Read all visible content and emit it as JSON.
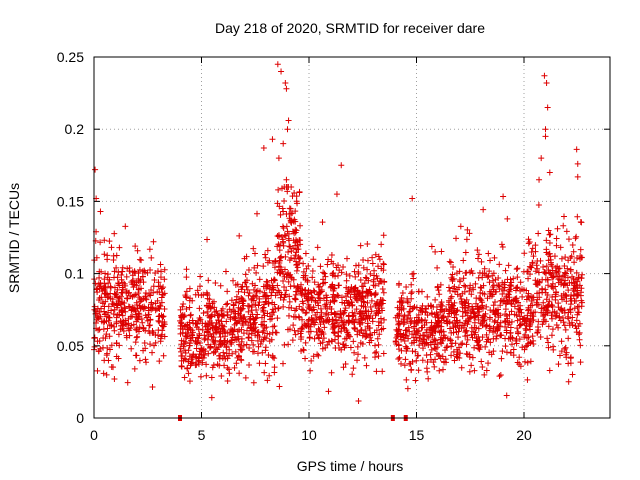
{
  "chart_data": {
    "type": "scatter",
    "title": "Day 218 of 2020, SRMTID for receiver dare",
    "xlabel": "GPS time / hours",
    "ylabel": "SRMTID / TECUs",
    "xlim": [
      0,
      24
    ],
    "ylim": [
      0,
      0.25
    ],
    "x_ticks": [
      0,
      5,
      10,
      15,
      20
    ],
    "x_tick_labels": [
      "0",
      "5",
      "10",
      "15",
      "20"
    ],
    "y_ticks": [
      0,
      0.05,
      0.1,
      0.15,
      0.2,
      0.25
    ],
    "y_tick_labels": [
      "0",
      "0.05",
      "0.1",
      "0.15",
      "0.2",
      "0.25"
    ],
    "grid": true,
    "marker": "+",
    "series_color": "#dd0000",
    "series": [
      {
        "name": "SRMTID",
        "description": "Dense scatter of SRMTID values; bulk between 0.03 and 0.13 TECU with peaks near 9 h and 21 h",
        "segments": [
          {
            "x_range": [
              0.0,
              3.3
            ],
            "y_center": 0.075,
            "y_spread": 0.03,
            "count": 420
          },
          {
            "x_range": [
              4.0,
              6.5
            ],
            "y_center": 0.058,
            "y_spread": 0.025,
            "count": 320
          },
          {
            "x_range": [
              6.5,
              8.5
            ],
            "y_center": 0.07,
            "y_spread": 0.03,
            "count": 260
          },
          {
            "x_range": [
              8.5,
              9.6
            ],
            "y_center": 0.11,
            "y_spread": 0.045,
            "count": 180
          },
          {
            "x_range": [
              9.6,
              13.5
            ],
            "y_center": 0.075,
            "y_spread": 0.03,
            "count": 520
          },
          {
            "x_range": [
              14.0,
              16.5
            ],
            "y_center": 0.06,
            "y_spread": 0.025,
            "count": 300
          },
          {
            "x_range": [
              16.5,
              20.2
            ],
            "y_center": 0.072,
            "y_spread": 0.03,
            "count": 480
          },
          {
            "x_range": [
              20.2,
              22.7
            ],
            "y_center": 0.085,
            "y_spread": 0.035,
            "count": 340
          }
        ],
        "outliers": [
          [
            0.05,
            0.172
          ],
          [
            0.1,
            0.152
          ],
          [
            0.3,
            0.143
          ],
          [
            8.55,
            0.245
          ],
          [
            8.7,
            0.24
          ],
          [
            8.9,
            0.232
          ],
          [
            8.95,
            0.228
          ],
          [
            9.0,
            0.2
          ],
          [
            9.05,
            0.206
          ],
          [
            8.8,
            0.19
          ],
          [
            8.6,
            0.18
          ],
          [
            8.3,
            0.193
          ],
          [
            7.9,
            0.187
          ],
          [
            8.95,
            0.165
          ],
          [
            8.85,
            0.16
          ],
          [
            11.5,
            0.175
          ],
          [
            11.3,
            0.155
          ],
          [
            14.8,
            0.152
          ],
          [
            20.95,
            0.237
          ],
          [
            21.05,
            0.232
          ],
          [
            21.1,
            0.215
          ],
          [
            21.0,
            0.2
          ],
          [
            21.0,
            0.195
          ],
          [
            20.8,
            0.18
          ],
          [
            20.7,
            0.165
          ],
          [
            21.2,
            0.17
          ],
          [
            22.45,
            0.186
          ],
          [
            22.5,
            0.176
          ],
          [
            22.5,
            0.167
          ]
        ],
        "gap_markers_x": [
          4.0,
          13.9,
          14.5
        ]
      }
    ]
  }
}
